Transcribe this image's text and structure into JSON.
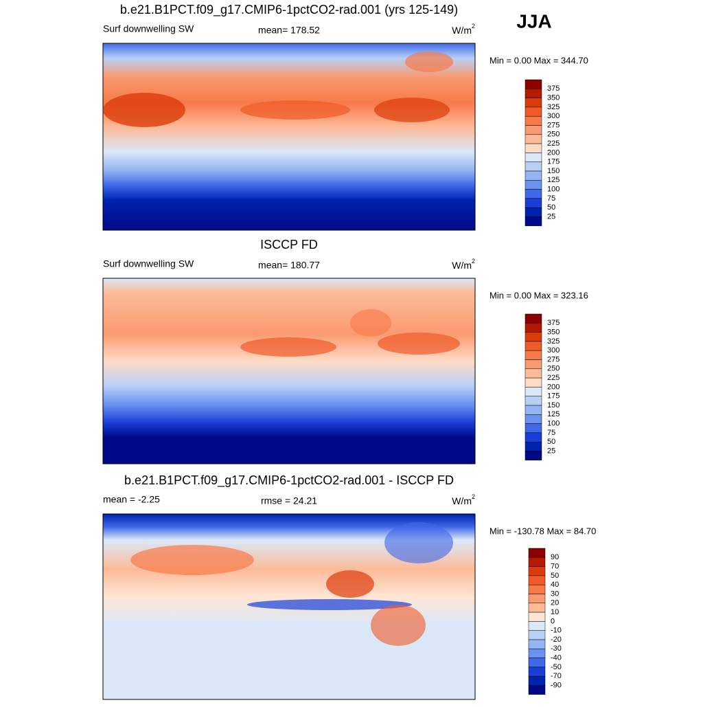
{
  "season": "JJA",
  "panels": [
    {
      "title": "b.e21.B1PCT.f09_g17.CMIP6-1pctCO2-rad.001 (yrs 125-149)",
      "left": "Surf downwelling SW",
      "center": "mean= 178.52",
      "units": "W/m",
      "units_sup": "2",
      "range": "Min =   0.00 Max = 344.70",
      "colorbar": {
        "labels": [
          "375",
          "350",
          "325",
          "300",
          "275",
          "250",
          "225",
          "200",
          "175",
          "150",
          "125",
          "100",
          "75",
          "50",
          "25"
        ],
        "colors": [
          "#8c0000",
          "#b51a00",
          "#dc3c0c",
          "#f05a28",
          "#f77a4a",
          "#fa9a70",
          "#fcbb98",
          "#fddcc6",
          "#dae8f8",
          "#b8d0f6",
          "#94b4f2",
          "#6a92ee",
          "#4068e8",
          "#1a3ed8",
          "#0022b0",
          "#000a88"
        ]
      }
    },
    {
      "title": "ISCCP FD",
      "left": "Surf downwelling SW",
      "center": "mean= 180.77",
      "units": "W/m",
      "units_sup": "2",
      "range": "Min =   0.00 Max = 323.16",
      "colorbar": {
        "labels": [
          "375",
          "350",
          "325",
          "300",
          "275",
          "250",
          "225",
          "200",
          "175",
          "150",
          "125",
          "100",
          "75",
          "50",
          "25"
        ],
        "colors": [
          "#8c0000",
          "#b51a00",
          "#dc3c0c",
          "#f05a28",
          "#f77a4a",
          "#fa9a70",
          "#fcbb98",
          "#fddcc6",
          "#dae8f8",
          "#b8d0f6",
          "#94b4f2",
          "#6a92ee",
          "#4068e8",
          "#1a3ed8",
          "#0022b0",
          "#000a88"
        ]
      }
    },
    {
      "title": "b.e21.B1PCT.f09_g17.CMIP6-1pctCO2-rad.001 - ISCCP FD",
      "left": "mean =  -2.25",
      "center": "rmse =  24.21",
      "units": "W/m",
      "units_sup": "2",
      "range": "Min = -130.78 Max =  84.70",
      "colorbar": {
        "labels": [
          "90",
          "70",
          "50",
          "40",
          "30",
          "20",
          "10",
          "0",
          "-10",
          "-20",
          "-30",
          "-40",
          "-50",
          "-70",
          "-90"
        ],
        "colors": [
          "#8c0000",
          "#b51a00",
          "#dc3c0c",
          "#f05a28",
          "#f77a4a",
          "#fa9a70",
          "#fcbb98",
          "#fde6d6",
          "#dae8f8",
          "#b8d0f6",
          "#94b4f2",
          "#6a92ee",
          "#4068e8",
          "#1a3ed8",
          "#0022b0",
          "#000a88"
        ]
      }
    }
  ]
}
